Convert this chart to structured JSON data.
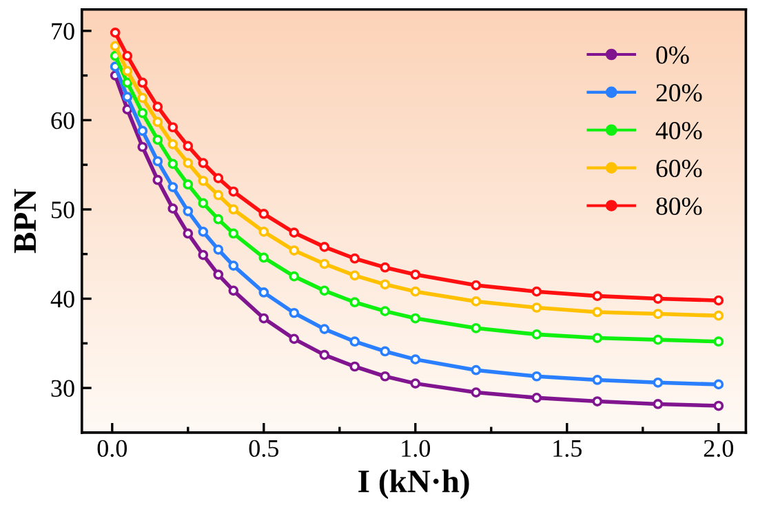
{
  "chart_data": {
    "type": "line",
    "xlabel": "I (kN·h)",
    "ylabel": "BPN",
    "x": [
      0.01,
      0.05,
      0.1,
      0.15,
      0.2,
      0.25,
      0.3,
      0.35,
      0.4,
      0.5,
      0.6,
      0.7,
      0.8,
      0.9,
      1.0,
      1.2,
      1.4,
      1.6,
      1.8,
      2.0
    ],
    "series": [
      {
        "name": "0%",
        "color": "#80158f",
        "values": [
          65.0,
          61.2,
          57.0,
          53.3,
          50.1,
          47.3,
          44.9,
          42.7,
          40.9,
          37.8,
          35.5,
          33.7,
          32.4,
          31.3,
          30.5,
          29.5,
          28.9,
          28.5,
          28.2,
          28.0
        ]
      },
      {
        "name": "20%",
        "color": "#2a7fff",
        "values": [
          66.0,
          62.6,
          58.8,
          55.4,
          52.5,
          49.8,
          47.5,
          45.5,
          43.7,
          40.7,
          38.4,
          36.6,
          35.2,
          34.1,
          33.2,
          32.0,
          31.3,
          30.9,
          30.6,
          30.4
        ]
      },
      {
        "name": "40%",
        "color": "#10f010",
        "values": [
          67.2,
          64.2,
          60.8,
          57.8,
          55.1,
          52.8,
          50.7,
          48.9,
          47.3,
          44.6,
          42.5,
          40.9,
          39.6,
          38.6,
          37.8,
          36.7,
          36.0,
          35.6,
          35.4,
          35.2
        ]
      },
      {
        "name": "60%",
        "color": "#ffc000",
        "values": [
          68.3,
          65.5,
          62.5,
          59.8,
          57.3,
          55.2,
          53.2,
          51.6,
          50.0,
          47.5,
          45.4,
          43.9,
          42.6,
          41.6,
          40.8,
          39.7,
          39.0,
          38.5,
          38.3,
          38.1
        ]
      },
      {
        "name": "80%",
        "color": "#ff1010",
        "values": [
          69.8,
          67.2,
          64.2,
          61.5,
          59.2,
          57.1,
          55.2,
          53.5,
          52.0,
          49.5,
          47.4,
          45.8,
          44.5,
          43.5,
          42.7,
          41.5,
          40.8,
          40.3,
          40.0,
          39.8
        ]
      }
    ],
    "xlim": [
      -0.1,
      2.09
    ],
    "ylim": [
      25,
      72.4
    ],
    "xticks": [
      {
        "value": 0,
        "label": "0.0"
      },
      0.5,
      {
        "value": 1,
        "label": "1.0"
      },
      1.5,
      {
        "value": 2,
        "label": "2.0"
      }
    ],
    "yticks": [
      30,
      40,
      50,
      60,
      70
    ],
    "marker": "circle",
    "line_style": "solid",
    "legend": "top right",
    "grid": false
  }
}
